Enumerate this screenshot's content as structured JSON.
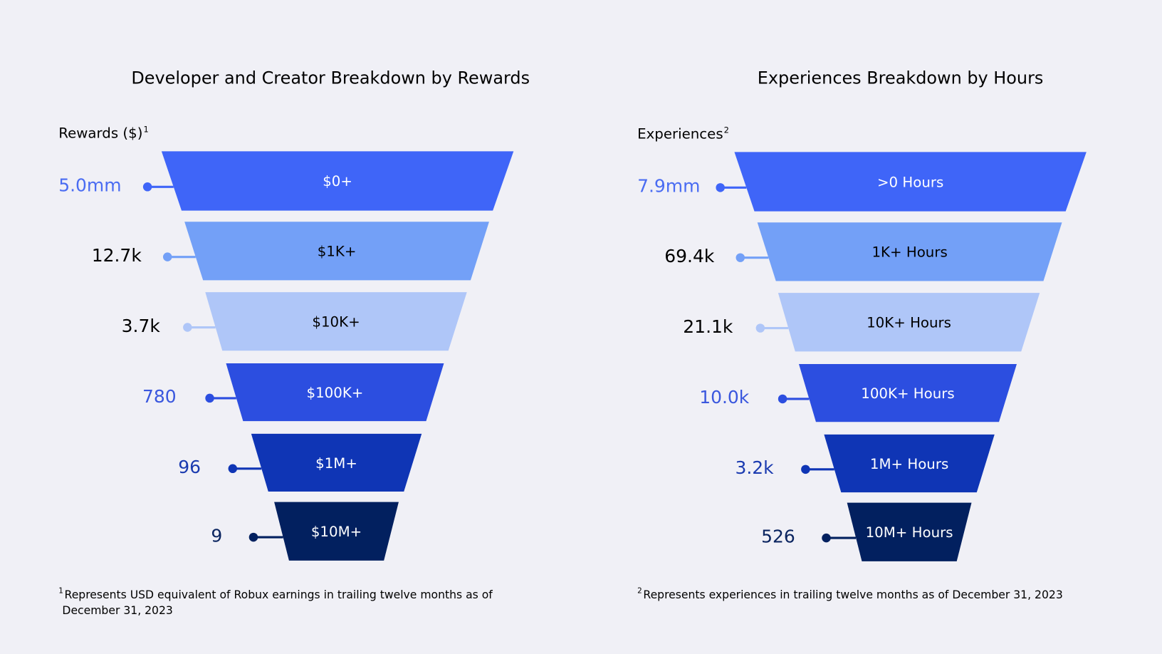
{
  "chart_data": [
    {
      "type": "funnel",
      "title": "Developer and Creator Breakdown by Rewards",
      "ylabel": "Rewards ($)",
      "ylabel_sup": "1",
      "stages": [
        "$0+",
        "$1K+",
        "$10K+",
        "$100K+",
        "$1M+",
        "$10M+"
      ],
      "values": [
        "5.0mm",
        "12.7k",
        "3.7k",
        "780",
        "96",
        "9"
      ],
      "footnote_mark": "1",
      "footnote_lines": [
        "Represents USD equivalent of Robux earnings in trailing twelve months as of",
        "December 31, 2023"
      ]
    },
    {
      "type": "funnel",
      "title": "Experiences Breakdown by Hours",
      "ylabel": "Experiences",
      "ylabel_sup": "2",
      "stages": [
        ">0 Hours",
        "1K+ Hours",
        "10K+  Hours",
        "100K+ Hours",
        "1M+ Hours",
        "10M+ Hours"
      ],
      "values": [
        "7.9mm",
        "69.4k",
        "21.1k",
        "10.0k",
        "3.2k",
        "526"
      ],
      "footnote_mark": "2",
      "footnote_lines": [
        "Represents experiences in trailing twelve months as of December 31, 2023"
      ]
    }
  ],
  "colors": {
    "background": "#f0f0f6",
    "stage_fills": [
      "#3f65f8",
      "#73a0f7",
      "#afc6f8",
      "#2c4ee0",
      "#0f35b5",
      "#02205f"
    ],
    "stage_text": [
      "#ffffff",
      "#000000",
      "#000000",
      "#ffffff",
      "#ffffff",
      "#ffffff"
    ],
    "value_text": [
      "#4a6cf2",
      "#000000",
      "#000000",
      "#3a57de",
      "#1b3bb0",
      "#0b2560"
    ]
  }
}
